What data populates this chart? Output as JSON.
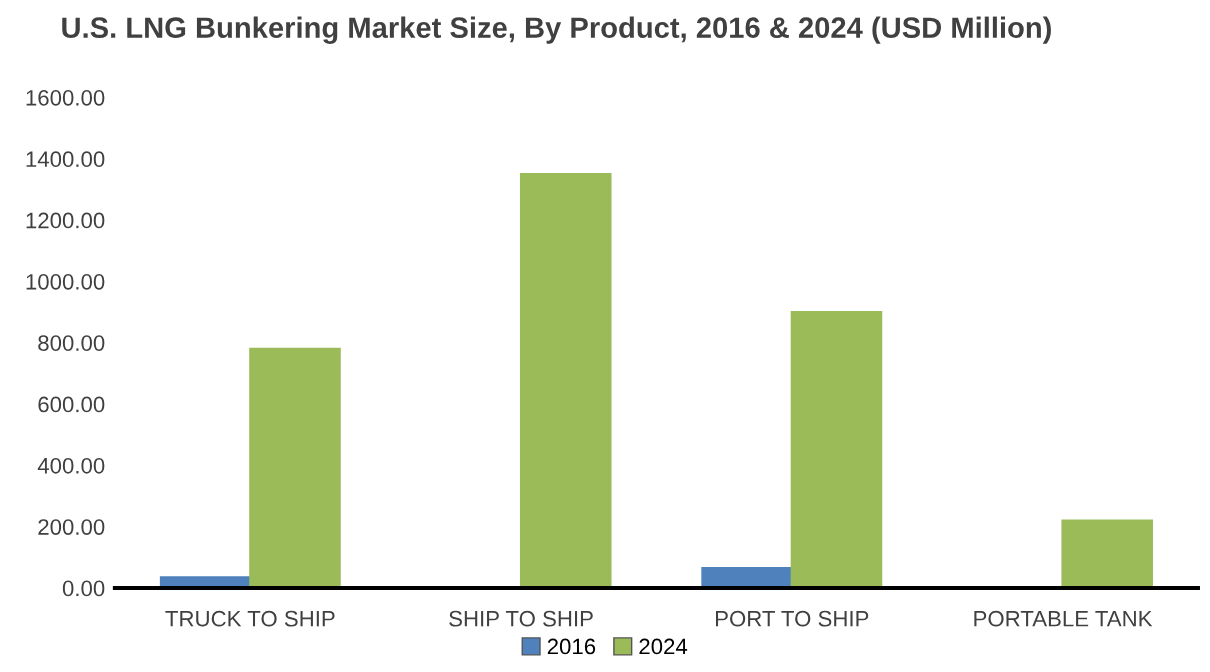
{
  "chart_data": {
    "type": "bar",
    "title": "U.S. LNG Bunkering Market Size, By Product, 2016 & 2024 (USD Million)",
    "categories": [
      "TRUCK TO SHIP",
      "SHIP TO SHIP",
      "PORT TO SHIP",
      "PORTABLE TANK"
    ],
    "series": [
      {
        "name": "2016",
        "color": "#4f81bd",
        "values": [
          35,
          null,
          65,
          null
        ]
      },
      {
        "name": "2024",
        "color": "#9bbb59",
        "values": [
          780,
          1350,
          900,
          220
        ]
      }
    ],
    "ylim": [
      0,
      1600
    ],
    "yticks": [
      {
        "value": 0,
        "label": "0.00"
      },
      {
        "value": 200,
        "label": "200.00"
      },
      {
        "value": 400,
        "label": "400.00"
      },
      {
        "value": 600,
        "label": "600.00"
      },
      {
        "value": 800,
        "label": "800.00"
      },
      {
        "value": 1000,
        "label": "1000.00"
      },
      {
        "value": 1200,
        "label": "1200.00"
      },
      {
        "value": 1400,
        "label": "1400.00"
      },
      {
        "value": 1600,
        "label": "1600.00"
      }
    ],
    "grid": false,
    "legend": "bottom"
  }
}
